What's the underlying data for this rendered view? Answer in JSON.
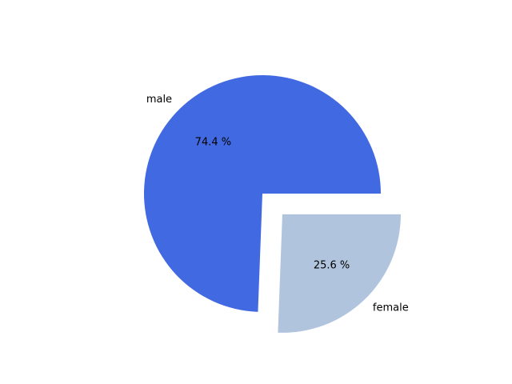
{
  "chart_data": {
    "type": "pie",
    "title": "",
    "categories": [
      "male",
      "female"
    ],
    "values": [
      74.4,
      25.6
    ],
    "percent_labels": [
      "74.4 %",
      "25.6 %"
    ],
    "colors": [
      "#4169e1",
      "#b0c4de"
    ],
    "exploded": [
      false,
      true
    ],
    "legend": "none"
  }
}
